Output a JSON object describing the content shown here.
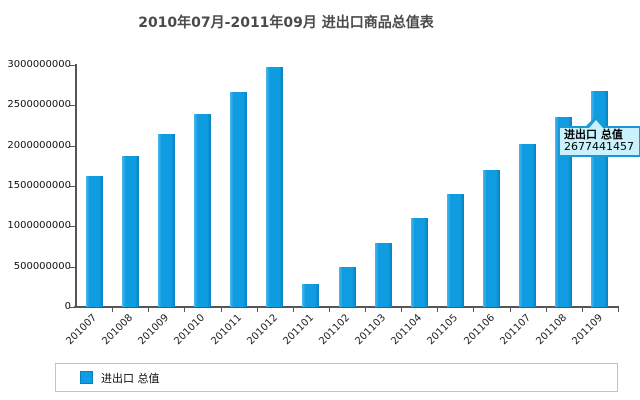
{
  "title": "2010年07月-2011年09月 进出口商品总值表",
  "chart_data": {
    "type": "bar",
    "title": "2010年07月-2011年09月 进出口商品总值表",
    "categories": [
      "201007",
      "201008",
      "201009",
      "201010",
      "201011",
      "201012",
      "201101",
      "201102",
      "201103",
      "201104",
      "201105",
      "201106",
      "201107",
      "201108",
      "201109"
    ],
    "series": [
      {
        "name": "进出口 总值",
        "values": [
          1620000000,
          1870000000,
          2140000000,
          2390000000,
          2670000000,
          2980000000,
          290000000,
          490000000,
          790000000,
          1100000000,
          1400000000,
          1700000000,
          2020000000,
          2360000000,
          2677441457
        ]
      }
    ],
    "xlabel": "",
    "ylabel": "",
    "ylim": [
      0,
      3000000000
    ],
    "y_ticks": [
      0,
      500000000,
      1000000000,
      1500000000,
      2000000000,
      2500000000,
      3000000000
    ],
    "grid": false,
    "legend_position": "bottom"
  },
  "tooltip": {
    "series_label": "进出口 总值",
    "value": "2677441457"
  },
  "legend": {
    "label": "进出口 总值"
  },
  "colors": {
    "bar": "#0f9ce0",
    "bar_light": "#4cb9ee",
    "bar_dark": "#0a7fc0",
    "tooltip_bg": "#caf2fc",
    "tooltip_border": "#179ad6",
    "axis": "#555555"
  }
}
